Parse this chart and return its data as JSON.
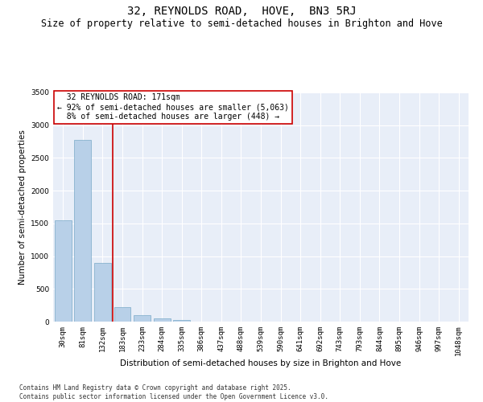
{
  "title": "32, REYNOLDS ROAD,  HOVE,  BN3 5RJ",
  "subtitle": "Size of property relative to semi-detached houses in Brighton and Hove",
  "xlabel": "Distribution of semi-detached houses by size in Brighton and Hove",
  "ylabel": "Number of semi-detached properties",
  "categories": [
    "30sqm",
    "81sqm",
    "132sqm",
    "183sqm",
    "233sqm",
    "284sqm",
    "335sqm",
    "386sqm",
    "437sqm",
    "488sqm",
    "539sqm",
    "590sqm",
    "641sqm",
    "692sqm",
    "743sqm",
    "793sqm",
    "844sqm",
    "895sqm",
    "946sqm",
    "997sqm",
    "1048sqm"
  ],
  "values": [
    1550,
    2780,
    900,
    220,
    100,
    55,
    30,
    0,
    0,
    0,
    0,
    0,
    0,
    0,
    0,
    0,
    0,
    0,
    0,
    0,
    0
  ],
  "bar_color": "#b8d0e8",
  "bar_edge_color": "#7aaac8",
  "vline_x": 2.5,
  "vline_color": "#cc0000",
  "annotation_text": "  32 REYNOLDS ROAD: 171sqm\n← 92% of semi-detached houses are smaller (5,063)\n  8% of semi-detached houses are larger (448) →",
  "annotation_box_color": "#ffffff",
  "annotation_box_edge": "#cc0000",
  "ylim": [
    0,
    3500
  ],
  "yticks": [
    0,
    500,
    1000,
    1500,
    2000,
    2500,
    3000,
    3500
  ],
  "background_color": "#e8eef8",
  "footer_text": "Contains HM Land Registry data © Crown copyright and database right 2025.\nContains public sector information licensed under the Open Government Licence v3.0.",
  "title_fontsize": 10,
  "subtitle_fontsize": 8.5,
  "axis_label_fontsize": 7.5,
  "tick_fontsize": 6.5,
  "annotation_fontsize": 7,
  "footer_fontsize": 5.5
}
